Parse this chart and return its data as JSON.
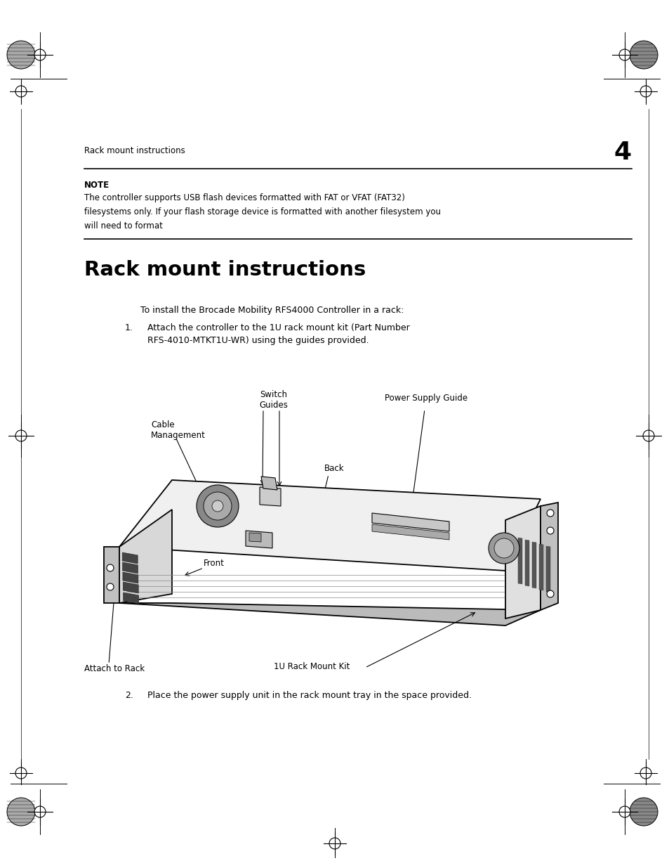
{
  "background_color": "#ffffff",
  "page_width": 9.54,
  "page_height": 12.35,
  "header_text": "Rack mount instructions",
  "header_page_num": "4",
  "note_label": "NOTE",
  "note_text_line1": "The controller supports USB flash devices formatted with FAT or VFAT (FAT32)",
  "note_text_line2": "filesystems only. If your flash storage device is formatted with another filesystem you",
  "note_text_line3": "will need to format",
  "section_title": "Rack mount instructions",
  "intro_text": "To install the Brocade Mobility RFS4000 Controller in a rack:",
  "step1_num": "1.",
  "step1_text_line1": "Attach the controller to the 1U rack mount kit (Part Number",
  "step1_text_line2": "RFS-4010-MTKT1U-WR) using the guides provided.",
  "step2_num": "2.",
  "step2_text": "Place the power supply unit in the rack mount tray in the space provided.",
  "label_switch_guides": "Switch\nGuides",
  "label_power_supply": "Power Supply Guide",
  "label_cable_mgmt": "Cable\nManagement",
  "label_back": "Back",
  "label_front": "Front",
  "label_attach_rack": "Attach to Rack",
  "label_1u_kit": "1U Rack Mount Kit",
  "font_main": "DejaVu Sans",
  "font_title": "DejaVu Sans"
}
